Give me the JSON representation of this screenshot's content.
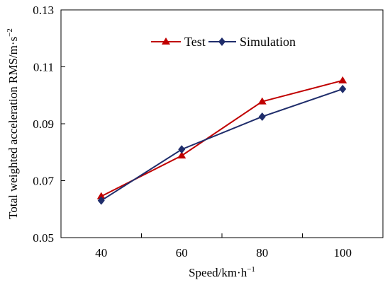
{
  "chart_data": {
    "type": "line",
    "x": [
      40,
      60,
      80,
      100
    ],
    "x_tick_labels": [
      "40",
      "60",
      "80",
      "100"
    ],
    "y_tick_labels": [
      "0.05",
      "0.07",
      "0.09",
      "0.11",
      "0.13"
    ],
    "xlim": [
      30,
      110
    ],
    "ylim": [
      0.05,
      0.13
    ],
    "xlabel": "Speed/km·h",
    "xlabel_sup": "−1",
    "ylabel": "Total weighted acceleration RMS/m·s",
    "ylabel_sup": "−2",
    "grid": false,
    "legend_position": "top-center",
    "series": [
      {
        "name": "Test",
        "marker": "triangle",
        "color": "#c00000",
        "values": [
          0.0645,
          0.0788,
          0.0978,
          0.1052
        ]
      },
      {
        "name": "Simulation",
        "marker": "diamond",
        "color": "#1f2d6b",
        "values": [
          0.063,
          0.081,
          0.0925,
          0.1022
        ]
      }
    ]
  }
}
